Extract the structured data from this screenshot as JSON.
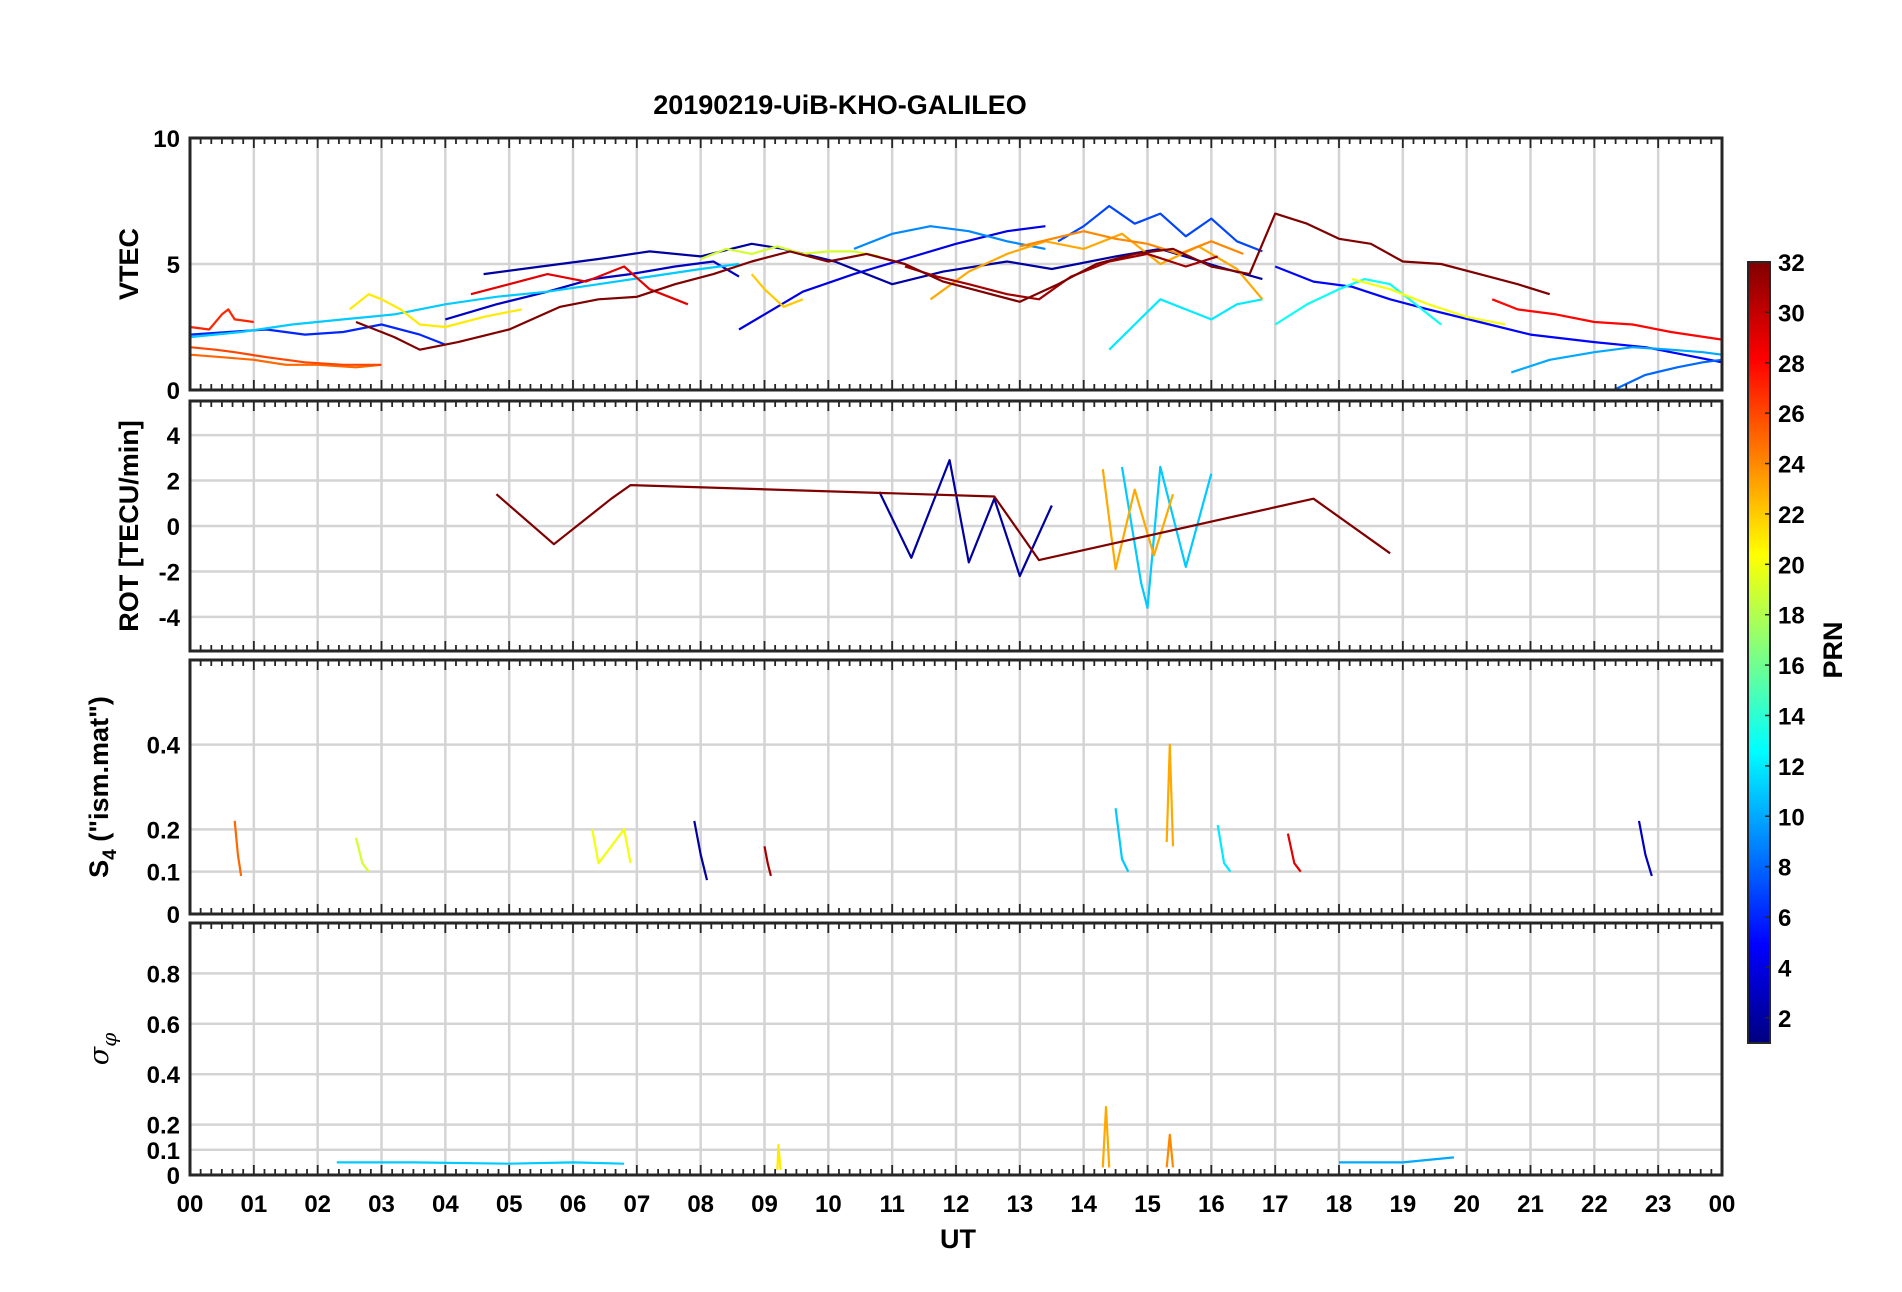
{
  "chart_data": {
    "type": "line",
    "title": "20190219-UiB-KHO-GALILEO",
    "xlabel": "UT",
    "xlim": [
      0,
      24
    ],
    "x_tick_labels": [
      "00",
      "01",
      "02",
      "03",
      "04",
      "05",
      "06",
      "07",
      "08",
      "09",
      "10",
      "11",
      "12",
      "13",
      "14",
      "15",
      "16",
      "17",
      "18",
      "19",
      "20",
      "21",
      "22",
      "23",
      "00"
    ],
    "grid": true,
    "colorbar": {
      "label": "PRN",
      "range": [
        1,
        32
      ],
      "tick_labels": [
        "2",
        "4",
        "6",
        "8",
        "10",
        "12",
        "14",
        "16",
        "18",
        "20",
        "22",
        "24",
        "26",
        "28",
        "30",
        "32"
      ],
      "placement": "right",
      "colormap": [
        "#000080",
        "#0000c0",
        "#0000ff",
        "#0040ff",
        "#0080ff",
        "#00c0ff",
        "#00ffff",
        "#40ffc0",
        "#80ff80",
        "#c0ff40",
        "#ffff00",
        "#ffc000",
        "#ff8000",
        "#ff4000",
        "#ff0000",
        "#c00000",
        "#800000"
      ]
    },
    "panels": [
      {
        "ylabel": "VTEC",
        "ylim": [
          0,
          10
        ],
        "y_tick_labels": [
          "0",
          "5",
          "10"
        ],
        "series": [
          {
            "prn": 2,
            "x": [
              4.6,
              5.5,
              6.4,
              7.2,
              8.0,
              8.8,
              9.3,
              10.1,
              11.0,
              11.8,
              12.8,
              13.5,
              14.5,
              15.2,
              16.1,
              16.8
            ],
            "y": [
              4.6,
              4.9,
              5.2,
              5.5,
              5.3,
              5.8,
              5.6,
              5.1,
              4.2,
              4.7,
              5.1,
              4.8,
              5.3,
              5.6,
              4.9,
              4.4
            ]
          },
          {
            "prn": 3,
            "x": [
              4.0,
              4.8,
              5.6,
              6.3,
              6.9,
              7.6,
              8.2,
              8.6
            ],
            "y": [
              2.8,
              3.4,
              3.9,
              4.4,
              4.6,
              4.9,
              5.1,
              4.5
            ]
          },
          {
            "prn": 4,
            "x": [
              8.6,
              9.0,
              9.6,
              10.4,
              11.2,
              12.0,
              12.8,
              13.4
            ],
            "y": [
              2.4,
              3.0,
              3.9,
              4.6,
              5.2,
              5.8,
              6.3,
              6.5
            ]
          },
          {
            "prn": 5,
            "x": [
              17.0,
              17.6,
              18.2,
              18.8,
              19.4,
              20.2,
              21.0,
              22.0,
              22.8,
              23.4,
              24.0
            ],
            "y": [
              4.9,
              4.3,
              4.1,
              3.6,
              3.2,
              2.7,
              2.2,
              1.9,
              1.7,
              1.4,
              1.1
            ]
          },
          {
            "prn": 6,
            "x": [
              0.0,
              0.6,
              1.2,
              1.8,
              2.4,
              3.0,
              3.6,
              4.0
            ],
            "y": [
              2.2,
              2.3,
              2.4,
              2.2,
              2.3,
              2.6,
              2.2,
              1.8
            ]
          },
          {
            "prn": 7,
            "x": [
              13.6,
              14.0,
              14.4,
              14.8,
              15.2,
              15.6,
              16.0,
              16.4,
              16.8
            ],
            "y": [
              5.9,
              6.5,
              7.3,
              6.6,
              7.0,
              6.1,
              6.8,
              5.9,
              5.5
            ]
          },
          {
            "prn": 8,
            "x": [
              22.3,
              22.8,
              23.3,
              23.7,
              24.0
            ],
            "y": [
              0.0,
              0.6,
              0.9,
              1.1,
              1.2
            ]
          },
          {
            "prn": 9,
            "x": [
              10.4,
              11.0,
              11.6,
              12.2,
              12.8,
              13.4
            ],
            "y": [
              5.6,
              6.2,
              6.5,
              6.3,
              5.9,
              5.6
            ]
          },
          {
            "prn": 10,
            "x": [
              20.7,
              21.3,
              22.0,
              22.6,
              23.2,
              23.7,
              24.0
            ],
            "y": [
              0.7,
              1.2,
              1.5,
              1.7,
              1.6,
              1.5,
              1.4
            ]
          },
          {
            "prn": 11,
            "x": [
              0.0,
              0.8,
              1.6,
              2.4,
              3.2,
              4.0,
              4.8,
              5.6,
              6.4,
              7.2,
              8.0,
              8.6
            ],
            "y": [
              2.1,
              2.3,
              2.6,
              2.8,
              3.0,
              3.4,
              3.7,
              3.9,
              4.2,
              4.5,
              4.8,
              5.0
            ]
          },
          {
            "prn": 12,
            "x": [
              14.4,
              14.8,
              15.2,
              15.6,
              16.0,
              16.4,
              16.8
            ],
            "y": [
              1.6,
              2.6,
              3.6,
              3.2,
              2.8,
              3.4,
              3.6
            ]
          },
          {
            "prn": 13,
            "x": [
              17.0,
              17.5,
              18.0,
              18.4,
              18.8,
              19.2,
              19.6
            ],
            "y": [
              2.6,
              3.4,
              4.0,
              4.4,
              4.2,
              3.4,
              2.6
            ]
          },
          {
            "prn": 19,
            "x": [
              8.0,
              8.4,
              8.8,
              9.2,
              9.6,
              10.0,
              10.4,
              10.8
            ],
            "y": [
              5.2,
              5.6,
              5.4,
              5.7,
              5.4,
              5.5,
              5.5,
              5.3
            ]
          },
          {
            "prn": 20,
            "x": [
              18.2,
              18.8,
              19.4,
              20.0,
              20.6
            ],
            "y": [
              4.4,
              4.0,
              3.4,
              2.9,
              2.6
            ]
          },
          {
            "prn": 21,
            "x": [
              2.5,
              2.8,
              3.0,
              3.3,
              3.6,
              4.0,
              4.6,
              5.2
            ],
            "y": [
              3.2,
              3.8,
              3.6,
              3.2,
              2.6,
              2.5,
              2.9,
              3.2
            ]
          },
          {
            "prn": 22,
            "x": [
              8.8,
              9.0,
              9.3,
              9.6
            ],
            "y": [
              4.6,
              4.0,
              3.3,
              3.6
            ]
          },
          {
            "prn": 23,
            "x": [
              11.6,
              12.2,
              12.8,
              13.4,
              14.0,
              14.6,
              15.2,
              15.8,
              16.4,
              16.8
            ],
            "y": [
              3.6,
              4.7,
              5.4,
              5.9,
              5.6,
              6.2,
              5.0,
              5.7,
              4.8,
              3.6
            ]
          },
          {
            "prn": 24,
            "x": [
              13.0,
              13.5,
              14.0,
              14.5,
              15.0,
              15.5,
              16.0,
              16.5
            ],
            "y": [
              5.7,
              6.0,
              6.3,
              6.0,
              5.8,
              5.4,
              5.9,
              5.4
            ]
          },
          {
            "prn": 25,
            "x": [
              0.0,
              0.5,
              1.0,
              1.5,
              2.0,
              2.6,
              3.0
            ],
            "y": [
              1.4,
              1.3,
              1.2,
              1.0,
              1.0,
              0.9,
              1.0
            ]
          },
          {
            "prn": 26,
            "x": [
              0.0,
              0.4,
              0.7,
              1.2,
              1.8,
              2.4,
              3.0
            ],
            "y": [
              1.7,
              1.6,
              1.5,
              1.3,
              1.1,
              1.0,
              1.0
            ]
          },
          {
            "prn": 27,
            "x": [
              0.0,
              0.3,
              0.5,
              0.6,
              0.7,
              1.0
            ],
            "y": [
              2.5,
              2.4,
              3.0,
              3.2,
              2.8,
              2.7
            ]
          },
          {
            "prn": 28,
            "x": [
              20.4,
              20.8,
              21.4,
              22.0,
              22.6,
              23.2,
              24.0
            ],
            "y": [
              3.6,
              3.2,
              3.0,
              2.7,
              2.6,
              2.3,
              2.0
            ]
          },
          {
            "prn": 29,
            "x": [
              4.4,
              5.0,
              5.6,
              6.2,
              6.8,
              7.2,
              7.8
            ],
            "y": [
              3.8,
              4.2,
              4.6,
              4.3,
              4.9,
              4.0,
              3.4
            ]
          },
          {
            "prn": 31,
            "x": [
              11.2,
              11.7,
              12.2,
              12.8,
              13.3,
              13.8,
              14.4,
              15.0,
              15.6,
              16.1
            ],
            "y": [
              4.9,
              4.5,
              4.2,
              3.8,
              3.6,
              4.5,
              5.1,
              5.4,
              4.9,
              5.3
            ]
          },
          {
            "prn": 32,
            "x": [
              2.6,
              3.2,
              3.6,
              4.2,
              5.0,
              5.8,
              6.4,
              7.0,
              7.6,
              8.2,
              8.8,
              9.4,
              10.0,
              10.6,
              11.2,
              11.8,
              12.4,
              13.0,
              13.6,
              14.2,
              14.8,
              15.4,
              16.0,
              16.6,
              17.0,
              17.5,
              18.0,
              18.5,
              19.0,
              19.6,
              20.2,
              20.8,
              21.3
            ],
            "y": [
              2.7,
              2.1,
              1.6,
              1.9,
              2.4,
              3.3,
              3.6,
              3.7,
              4.2,
              4.6,
              5.1,
              5.5,
              5.1,
              5.4,
              5.0,
              4.3,
              3.9,
              3.5,
              4.2,
              5.0,
              5.4,
              5.6,
              4.9,
              4.6,
              7.0,
              6.6,
              6.0,
              5.8,
              5.1,
              5.0,
              4.6,
              4.2,
              3.8
            ]
          }
        ]
      },
      {
        "ylabel": "ROT [TECU/min]",
        "ylim": [
          -5.5,
          5.5
        ],
        "y_tick_labels": [
          "-4",
          "-2",
          "0",
          "2",
          "4"
        ],
        "series": [
          {
            "prn": 2,
            "x": [
              10.8,
              11.3,
              11.9,
              12.2,
              12.6,
              13.0,
              13.5
            ],
            "y": [
              1.5,
              -1.4,
              2.9,
              -1.6,
              1.2,
              -2.2,
              0.9
            ]
          },
          {
            "prn": 11,
            "x": [
              14.6,
              14.9,
              15.0,
              15.2,
              15.6,
              16.0
            ],
            "y": [
              2.6,
              -2.5,
              -3.6,
              2.6,
              -1.8,
              2.3
            ]
          },
          {
            "prn": 23,
            "x": [
              14.3,
              14.5,
              14.8,
              15.1,
              15.4
            ],
            "y": [
              2.5,
              -1.9,
              1.6,
              -1.3,
              1.4
            ]
          },
          {
            "prn": 32,
            "x": [
              4.8,
              5.7,
              6.6,
              6.9,
              12.6,
              13.3,
              17.6,
              18.8
            ],
            "y": [
              1.4,
              -0.8,
              1.2,
              1.8,
              1.3,
              -1.5,
              1.2,
              -1.2
            ]
          }
        ]
      },
      {
        "ylabel": "S4 (\"ism.mat\")",
        "ylim": [
          0,
          0.6
        ],
        "y_tick_labels": [
          "0",
          "0.1",
          "0.2",
          "0.4"
        ],
        "series": [
          {
            "prn": 2,
            "x": [
              7.9,
              8.0,
              8.1
            ],
            "y": [
              0.22,
              0.14,
              0.08
            ]
          },
          {
            "prn": 3,
            "x": [
              22.7,
              22.8,
              22.9
            ],
            "y": [
              0.22,
              0.14,
              0.09
            ]
          },
          {
            "prn": 11,
            "x": [
              14.5,
              14.6,
              14.7
            ],
            "y": [
              0.25,
              0.13,
              0.1
            ]
          },
          {
            "prn": 12,
            "x": [
              16.1,
              16.2,
              16.3
            ],
            "y": [
              0.21,
              0.12,
              0.1
            ]
          },
          {
            "prn": 19,
            "x": [
              2.6,
              2.7,
              2.8
            ],
            "y": [
              0.18,
              0.12,
              0.1
            ]
          },
          {
            "prn": 20,
            "x": [
              6.3,
              6.4,
              6.8,
              6.9
            ],
            "y": [
              0.2,
              0.12,
              0.2,
              0.12
            ]
          },
          {
            "prn": 23,
            "x": [
              15.3,
              15.35,
              15.4
            ],
            "y": [
              0.17,
              0.4,
              0.16
            ]
          },
          {
            "prn": 25,
            "x": [
              0.7,
              0.75,
              0.8
            ],
            "y": [
              0.22,
              0.14,
              0.09
            ]
          },
          {
            "prn": 29,
            "x": [
              17.2,
              17.3,
              17.4
            ],
            "y": [
              0.19,
              0.12,
              0.1
            ]
          },
          {
            "prn": 31,
            "x": [
              9.0,
              9.05,
              9.1
            ],
            "y": [
              0.16,
              0.12,
              0.09
            ]
          }
        ]
      },
      {
        "ylabel": "σφ",
        "ylim": [
          0,
          1
        ],
        "y_tick_labels": [
          "0",
          "0.1",
          "0.2",
          "0.4",
          "0.6",
          "0.8"
        ],
        "series": [
          {
            "prn": 23,
            "x": [
              14.3,
              14.35,
              14.4
            ],
            "y": [
              0.03,
              0.27,
              0.03
            ]
          },
          {
            "prn": 24,
            "x": [
              15.3,
              15.35,
              15.4
            ],
            "y": [
              0.03,
              0.16,
              0.03
            ]
          },
          {
            "prn": 21,
            "x": [
              9.2,
              9.22,
              9.25
            ],
            "y": [
              0.02,
              0.12,
              0.02
            ]
          },
          {
            "prn": 11,
            "x": [
              2.3,
              3.5,
              5.0,
              6.0,
              6.8
            ],
            "y": [
              0.05,
              0.05,
              0.045,
              0.05,
              0.045
            ]
          },
          {
            "prn": 10,
            "x": [
              18.0,
              19.0,
              19.8
            ],
            "y": [
              0.05,
              0.05,
              0.07
            ]
          }
        ]
      }
    ]
  }
}
